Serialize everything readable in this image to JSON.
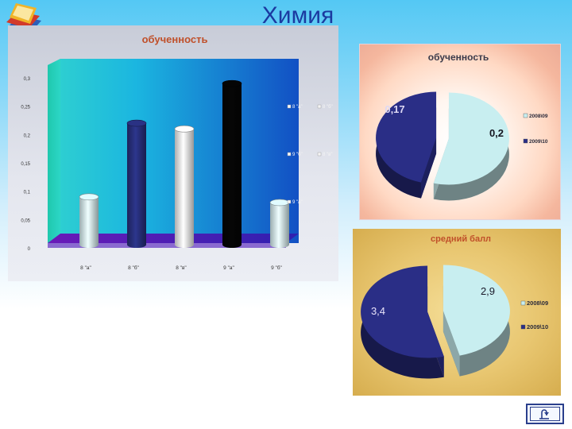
{
  "slide": {
    "title": "Химия"
  },
  "chart_data": [
    {
      "type": "bar",
      "title": "обученность",
      "categories": [
        "8 \"а\"",
        "8 \"б\"",
        "8 \"в\"",
        "9 \"а\"",
        "9 \"б\""
      ],
      "values": [
        0.09,
        0.22,
        0.21,
        0.29,
        0.08
      ],
      "colors": [
        "#d6f0f4",
        "#28307e",
        "#f2f2f2",
        "#050505",
        "#d6f0f4"
      ],
      "yticks": [
        "0",
        "0,05",
        "0,1",
        "0,15",
        "0,2",
        "0,25",
        "0,3"
      ],
      "ylim": [
        0,
        0.3
      ],
      "legend": [
        "8 \"а\"",
        "8 \"б\"",
        "9 \"б\"",
        "8 \"в\"",
        "9 \"а\""
      ],
      "xlabel": "",
      "ylabel": ""
    },
    {
      "type": "pie",
      "title": "обученность",
      "labels": [
        "2008\\09",
        "2009\\10"
      ],
      "values": [
        0.2,
        0.17
      ],
      "data_labels": [
        "0,2",
        "0,17"
      ],
      "colors": [
        "#c8eef0",
        "#2a2e86"
      ]
    },
    {
      "type": "pie",
      "title": "средний балл",
      "labels": [
        "2008\\09",
        "2009\\10"
      ],
      "values": [
        2.9,
        3.4
      ],
      "data_labels": [
        "2,9",
        "3,4"
      ],
      "colors": [
        "#c8eef0",
        "#2a2e86"
      ]
    }
  ]
}
